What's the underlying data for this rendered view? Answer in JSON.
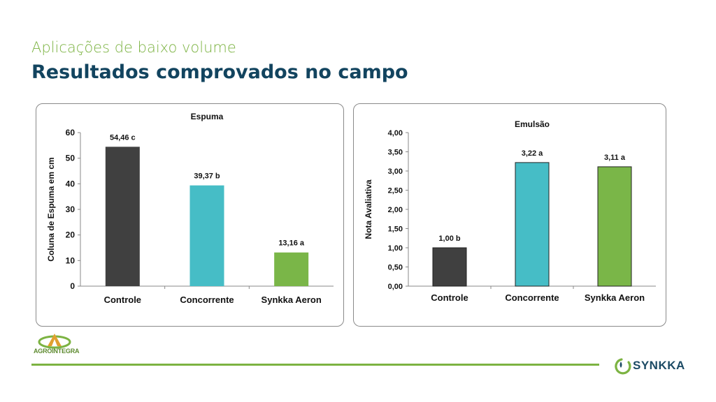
{
  "header": {
    "subtitle": "Aplicações de baixo volume",
    "title": "Resultados comprovados no campo"
  },
  "chart_data": [
    {
      "type": "bar",
      "title": "Espuma",
      "ylabel": "Coluna de Espuma em cm",
      "xlabel": "",
      "categories": [
        "Controle",
        "Concorrente",
        "Synkka Aeron"
      ],
      "values": [
        54.46,
        39.37,
        13.16
      ],
      "data_labels": [
        "54,46 c",
        "39,37 b",
        "13,16 a"
      ],
      "colors": [
        "#404040",
        "#46bdc6",
        "#7ab648"
      ],
      "ylim": [
        0,
        60
      ],
      "yticks": [
        0,
        10,
        20,
        30,
        40,
        50,
        60
      ],
      "ytick_labels": [
        "0",
        "10",
        "20",
        "30",
        "40",
        "50",
        "60"
      ],
      "grid": false,
      "bar_outline": false
    },
    {
      "type": "bar",
      "title": "Emulsão",
      "ylabel": "Nota Avaliativa",
      "xlabel": "",
      "categories": [
        "Controle",
        "Concorrente",
        "Synkka Aeron"
      ],
      "values": [
        1.0,
        3.22,
        3.11
      ],
      "data_labels": [
        "1,00 b",
        "3,22 a",
        "3,11 a"
      ],
      "colors": [
        "#404040",
        "#46bdc6",
        "#7ab648"
      ],
      "ylim": [
        0,
        4
      ],
      "yticks": [
        0,
        0.5,
        1,
        1.5,
        2,
        2.5,
        3,
        3.5,
        4
      ],
      "ytick_labels": [
        "0,00",
        "0,50",
        "1,00",
        "1,50",
        "2,00",
        "2,50",
        "3,00",
        "3,50",
        "4,00"
      ],
      "grid": false,
      "bar_outline": true
    }
  ],
  "footer": {
    "left_logo_text": "AGROINTEGRA",
    "left_logo_tagline": "",
    "right_logo_text": "SYNKKA",
    "accent_color": "#7cb342",
    "brand_color": "#12445f"
  }
}
